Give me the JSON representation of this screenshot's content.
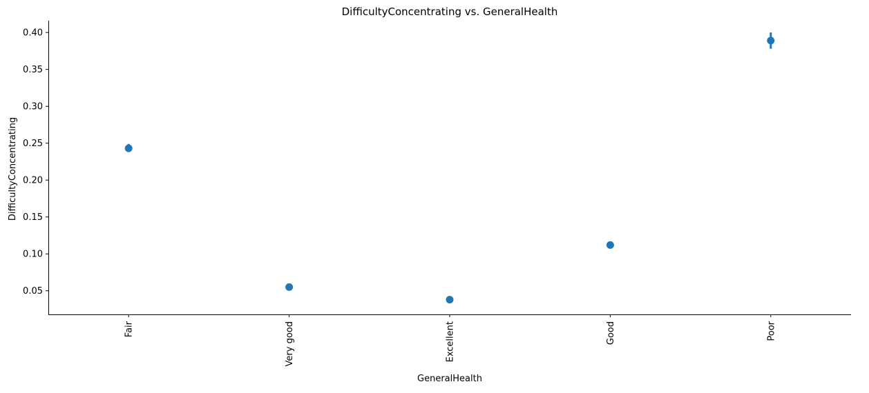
{
  "chart_data": {
    "type": "scatter",
    "title": "DifficultyConcentrating vs. GeneralHealth",
    "xlabel": "GeneralHealth",
    "ylabel": "DifficultyConcentrating",
    "categories": [
      "Fair",
      "Very good",
      "Excellent",
      "Good",
      "Poor"
    ],
    "series": [
      {
        "values": [
          0.243,
          0.055,
          0.038,
          0.112,
          0.389
        ],
        "error_low": [
          0.239,
          0.054,
          0.037,
          0.111,
          0.378
        ],
        "error_high": [
          0.249,
          0.057,
          0.04,
          0.114,
          0.4
        ]
      }
    ],
    "yticks": [
      "0.05",
      "0.10",
      "0.15",
      "0.20",
      "0.25",
      "0.30",
      "0.35",
      "0.40"
    ],
    "ylim": [
      0.018,
      0.416
    ],
    "grid": false,
    "colors": {
      "point": "#1f77b4",
      "axis": "#000000"
    }
  }
}
